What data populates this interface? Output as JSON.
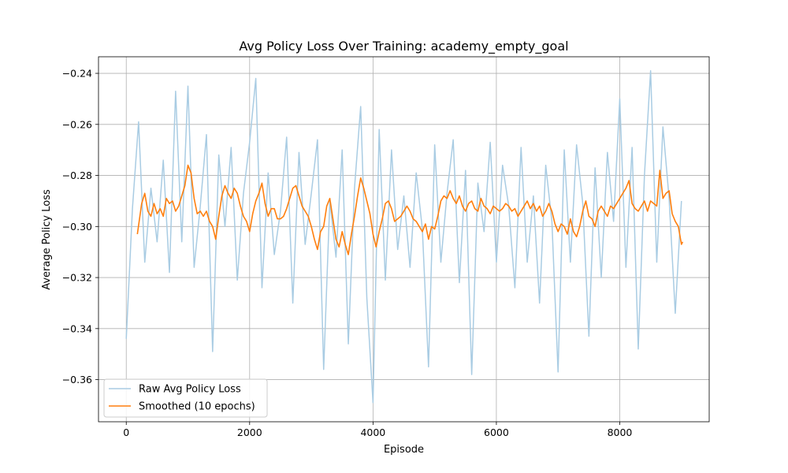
{
  "chart_data": {
    "type": "line",
    "title": "Avg Policy Loss Over Training: academy_empty_goal",
    "xlabel": "Episode",
    "ylabel": "Average Policy Loss",
    "xlim": [
      -450,
      9450
    ],
    "ylim": [
      -0.3765,
      -0.2335
    ],
    "xticks": [
      0,
      2000,
      4000,
      6000,
      8000
    ],
    "xtick_labels": [
      "0",
      "2000",
      "4000",
      "6000",
      "8000"
    ],
    "yticks": [
      -0.36,
      -0.34,
      -0.32,
      -0.3,
      -0.28,
      -0.26,
      -0.24
    ],
    "ytick_labels": [
      "−0.36",
      "−0.34",
      "−0.32",
      "−0.30",
      "−0.28",
      "−0.26",
      "−0.24"
    ],
    "grid": true,
    "legend_position": "lower-left",
    "colors": {
      "raw": "#a9cce3",
      "smoothed": "#ff7f0e",
      "grid": "#b0b0b0"
    },
    "series": [
      {
        "name": "Raw Avg Policy Loss",
        "x": [
          0,
          100,
          200,
          300,
          400,
          500,
          600,
          700,
          800,
          900,
          1000,
          1100,
          1200,
          1300,
          1400,
          1500,
          1600,
          1700,
          1800,
          1900,
          2000,
          2100,
          2200,
          2300,
          2400,
          2500,
          2600,
          2700,
          2800,
          2900,
          3000,
          3100,
          3200,
          3300,
          3400,
          3500,
          3600,
          3700,
          3800,
          3900,
          4000,
          4100,
          4200,
          4300,
          4400,
          4500,
          4600,
          4700,
          4800,
          4900,
          5000,
          5100,
          5200,
          5300,
          5400,
          5500,
          5600,
          5700,
          5800,
          5900,
          6000,
          6100,
          6200,
          6300,
          6400,
          6500,
          6600,
          6700,
          6800,
          6900,
          7000,
          7100,
          7200,
          7300,
          7400,
          7500,
          7600,
          7700,
          7800,
          7900,
          8000,
          8100,
          8200,
          8300,
          8400,
          8500,
          8600,
          8700,
          8800,
          8900,
          9000
        ],
        "values": [
          -0.344,
          -0.293,
          -0.259,
          -0.314,
          -0.285,
          -0.306,
          -0.274,
          -0.318,
          -0.247,
          -0.306,
          -0.245,
          -0.316,
          -0.292,
          -0.264,
          -0.349,
          -0.272,
          -0.3,
          -0.269,
          -0.321,
          -0.287,
          -0.267,
          -0.242,
          -0.324,
          -0.279,
          -0.311,
          -0.294,
          -0.265,
          -0.33,
          -0.271,
          -0.307,
          -0.287,
          -0.266,
          -0.356,
          -0.29,
          -0.312,
          -0.27,
          -0.346,
          -0.285,
          -0.253,
          -0.328,
          -0.369,
          -0.262,
          -0.321,
          -0.27,
          -0.309,
          -0.288,
          -0.316,
          -0.279,
          -0.301,
          -0.355,
          -0.268,
          -0.314,
          -0.287,
          -0.266,
          -0.322,
          -0.278,
          -0.358,
          -0.283,
          -0.302,
          -0.267,
          -0.314,
          -0.276,
          -0.292,
          -0.324,
          -0.269,
          -0.314,
          -0.288,
          -0.33,
          -0.276,
          -0.298,
          -0.357,
          -0.27,
          -0.314,
          -0.268,
          -0.291,
          -0.343,
          -0.277,
          -0.32,
          -0.271,
          -0.298,
          -0.25,
          -0.316,
          -0.269,
          -0.348,
          -0.28,
          -0.239,
          -0.314,
          -0.261,
          -0.289,
          -0.334,
          -0.29
        ]
      },
      {
        "name": "Smoothed (10 epochs)",
        "x": [
          180,
          250,
          300,
          350,
          400,
          450,
          500,
          550,
          600,
          650,
          700,
          750,
          800,
          850,
          900,
          950,
          1000,
          1050,
          1100,
          1150,
          1200,
          1250,
          1300,
          1350,
          1400,
          1450,
          1500,
          1550,
          1600,
          1650,
          1700,
          1750,
          1800,
          1850,
          1900,
          1950,
          2000,
          2050,
          2100,
          2150,
          2200,
          2250,
          2300,
          2350,
          2400,
          2450,
          2500,
          2550,
          2600,
          2650,
          2700,
          2750,
          2800,
          2850,
          2900,
          2950,
          3000,
          3050,
          3100,
          3150,
          3200,
          3250,
          3300,
          3350,
          3400,
          3450,
          3500,
          3550,
          3600,
          3650,
          3700,
          3750,
          3800,
          3850,
          3900,
          3950,
          4000,
          4050,
          4100,
          4150,
          4200,
          4250,
          4300,
          4350,
          4400,
          4450,
          4500,
          4550,
          4600,
          4650,
          4700,
          4750,
          4800,
          4850,
          4900,
          4950,
          5000,
          5050,
          5100,
          5150,
          5200,
          5250,
          5300,
          5350,
          5400,
          5450,
          5500,
          5550,
          5600,
          5650,
          5700,
          5750,
          5800,
          5850,
          5900,
          5950,
          6000,
          6050,
          6100,
          6150,
          6200,
          6250,
          6300,
          6350,
          6400,
          6450,
          6500,
          6550,
          6600,
          6650,
          6700,
          6750,
          6800,
          6850,
          6900,
          6950,
          7000,
          7050,
          7100,
          7150,
          7200,
          7250,
          7300,
          7350,
          7400,
          7450,
          7500,
          7550,
          7600,
          7650,
          7700,
          7750,
          7800,
          7850,
          7900,
          7950,
          8000,
          8050,
          8100,
          8150,
          8200,
          8250,
          8300,
          8350,
          8400,
          8450,
          8500,
          8550,
          8600,
          8650,
          8700,
          8750,
          8800,
          8850,
          8900,
          8950,
          9000,
          9020
        ],
        "values": [
          -0.303,
          -0.291,
          -0.287,
          -0.294,
          -0.296,
          -0.291,
          -0.295,
          -0.293,
          -0.296,
          -0.289,
          -0.291,
          -0.29,
          -0.294,
          -0.292,
          -0.288,
          -0.284,
          -0.276,
          -0.279,
          -0.289,
          -0.295,
          -0.294,
          -0.296,
          -0.294,
          -0.298,
          -0.3,
          -0.305,
          -0.296,
          -0.288,
          -0.284,
          -0.287,
          -0.289,
          -0.285,
          -0.287,
          -0.292,
          -0.296,
          -0.298,
          -0.302,
          -0.295,
          -0.29,
          -0.287,
          -0.283,
          -0.291,
          -0.296,
          -0.293,
          -0.293,
          -0.297,
          -0.297,
          -0.296,
          -0.293,
          -0.289,
          -0.285,
          -0.284,
          -0.288,
          -0.292,
          -0.294,
          -0.296,
          -0.3,
          -0.305,
          -0.309,
          -0.302,
          -0.3,
          -0.292,
          -0.289,
          -0.297,
          -0.305,
          -0.308,
          -0.302,
          -0.307,
          -0.311,
          -0.303,
          -0.296,
          -0.288,
          -0.281,
          -0.285,
          -0.29,
          -0.295,
          -0.303,
          -0.308,
          -0.302,
          -0.297,
          -0.291,
          -0.29,
          -0.293,
          -0.298,
          -0.297,
          -0.296,
          -0.294,
          -0.292,
          -0.294,
          -0.297,
          -0.298,
          -0.3,
          -0.302,
          -0.299,
          -0.305,
          -0.3,
          -0.301,
          -0.296,
          -0.29,
          -0.288,
          -0.289,
          -0.286,
          -0.289,
          -0.291,
          -0.288,
          -0.292,
          -0.294,
          -0.291,
          -0.29,
          -0.293,
          -0.294,
          -0.289,
          -0.292,
          -0.293,
          -0.295,
          -0.292,
          -0.293,
          -0.294,
          -0.293,
          -0.291,
          -0.292,
          -0.294,
          -0.293,
          -0.296,
          -0.294,
          -0.292,
          -0.29,
          -0.293,
          -0.291,
          -0.294,
          -0.292,
          -0.296,
          -0.294,
          -0.291,
          -0.294,
          -0.299,
          -0.302,
          -0.299,
          -0.3,
          -0.303,
          -0.297,
          -0.302,
          -0.304,
          -0.3,
          -0.294,
          -0.29,
          -0.296,
          -0.297,
          -0.3,
          -0.294,
          -0.292,
          -0.294,
          -0.296,
          -0.292,
          -0.293,
          -0.291,
          -0.289,
          -0.287,
          -0.285,
          -0.282,
          -0.291,
          -0.293,
          -0.294,
          -0.292,
          -0.29,
          -0.294,
          -0.29,
          -0.291,
          -0.292,
          -0.278,
          -0.289,
          -0.287,
          -0.286,
          -0.295,
          -0.298,
          -0.3,
          -0.307,
          -0.306
        ]
      }
    ]
  }
}
